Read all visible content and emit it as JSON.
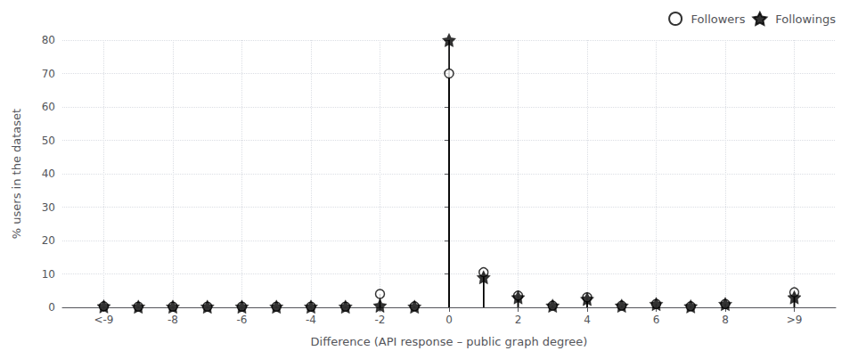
{
  "chart_data": {
    "type": "stem",
    "xlabel": "Difference (API response – public graph degree)",
    "ylabel": "% users in the dataset",
    "x": [
      -10,
      -9,
      -8,
      -7,
      -6,
      -5,
      -4,
      -3,
      -2,
      -1,
      0,
      1,
      2,
      3,
      4,
      5,
      6,
      7,
      8,
      10
    ],
    "series": [
      {
        "name": "Followers",
        "color": "black",
        "marker": "circle",
        "values": [
          0.3,
          0.2,
          0.2,
          0.2,
          0.2,
          0.2,
          0.2,
          0.2,
          4.0,
          0.3,
          70.0,
          10.5,
          3.5,
          0.5,
          3.0,
          0.5,
          1.0,
          0.3,
          1.0,
          4.5
        ]
      },
      {
        "name": "Followings",
        "color": "black",
        "marker": "star",
        "values": [
          0.3,
          0.2,
          0.2,
          0.2,
          0.2,
          0.2,
          0.2,
          0.2,
          0.5,
          0.2,
          80.0,
          9.0,
          3.0,
          0.5,
          2.5,
          0.5,
          1.0,
          0.3,
          1.0,
          3.0
        ]
      }
    ],
    "xlim": [
      -11.2,
      11.2
    ],
    "xticks": [
      {
        "value": -10,
        "label": "<-9"
      },
      -8,
      -6,
      -4,
      -2,
      0,
      2,
      4,
      6,
      8,
      {
        "value": 10,
        "label": ">9"
      }
    ],
    "ylim": [
      0,
      80
    ],
    "yticks": [
      0,
      10,
      20,
      30,
      40,
      50,
      60,
      70,
      80
    ],
    "grid": true,
    "legend": "upper right"
  }
}
